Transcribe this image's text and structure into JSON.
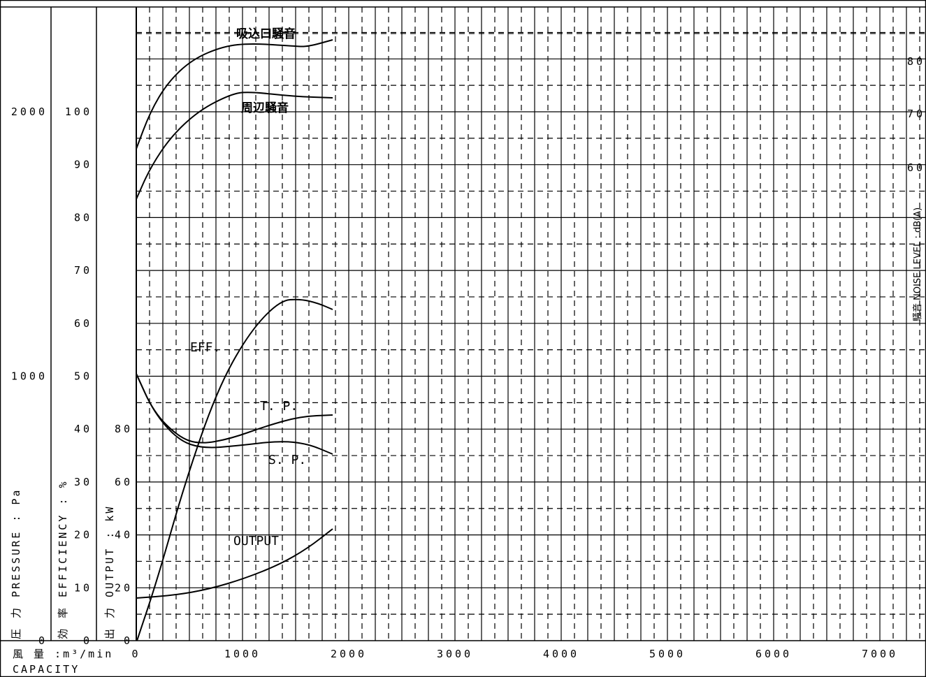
{
  "chart_data": {
    "type": "line",
    "title": "",
    "xlabel_jp": "風 量 :m³/min",
    "xlabel_en": "CAPACITY",
    "xlim": [
      0,
      7000
    ],
    "x_ticks": [
      "0",
      "1000",
      "2000",
      "3000",
      "4000",
      "5000",
      "6000",
      "7000"
    ],
    "axes": {
      "pressure": {
        "label": "圧 力 PRESSURE : Pa",
        "ticks": [
          "0",
          "1000",
          "2000"
        ],
        "ylim": [
          0,
          2500
        ]
      },
      "efficiency": {
        "label": "効 率 EFFICIENCY : %",
        "ticks": [
          "0",
          "10",
          "20",
          "30",
          "40",
          "50",
          "60",
          "70",
          "80",
          "90",
          "100"
        ],
        "ylim": [
          0,
          125
        ]
      },
      "output": {
        "label": "出 力 OUTPUT : kW",
        "ticks": [
          "0",
          "20",
          "40",
          "60",
          "80"
        ],
        "ylim": [
          0,
          250
        ]
      },
      "noise": {
        "label": "騒音 NOISE LEVEL : dB(A)",
        "ticks": [
          "60",
          "70",
          "80"
        ],
        "ylim": [
          0,
          90
        ]
      }
    },
    "grid": true,
    "series": [
      {
        "name": "吸込口騒音",
        "axis": "noise",
        "x": [
          0,
          250,
          500,
          750,
          1000,
          1250,
          1500,
          1750,
          1850
        ],
        "y": [
          84.3,
          79.3,
          81.6,
          82.3,
          82.3,
          82.2,
          82.2,
          82.4,
          82.6
        ]
      },
      {
        "name": "周辺騒音",
        "axis": "noise",
        "x": [
          0,
          250,
          500,
          750,
          1000,
          1250,
          1500,
          1750,
          1850
        ],
        "y": [
          67.3,
          71.9,
          74.1,
          74.9,
          75.0,
          74.9,
          74.7,
          74.7,
          74.8
        ]
      },
      {
        "name": "EFF.",
        "axis": "efficiency",
        "x": [
          0,
          250,
          500,
          750,
          1000,
          1250,
          1500,
          1750,
          1850
        ],
        "y": [
          0,
          13,
          35,
          41,
          54,
          60,
          65,
          64,
          63
        ]
      },
      {
        "name": "T. P.",
        "axis": "pressure",
        "x": [
          0,
          250,
          500,
          750,
          1000,
          1250,
          1500,
          1750,
          1850
        ],
        "y": [
          1000,
          780,
          690,
          700,
          760,
          820,
          860,
          865,
          860
        ]
      },
      {
        "name": "S. P.",
        "axis": "pressure",
        "x": [
          0,
          250,
          500,
          750,
          1000,
          1250,
          1500,
          1750,
          1850
        ],
        "y": [
          1000,
          780,
          670,
          660,
          680,
          700,
          700,
          660,
          630
        ]
      },
      {
        "name": "OUTPUT",
        "axis": "output",
        "x": [
          0,
          250,
          500,
          750,
          1000,
          1250,
          1500,
          1750,
          1850
        ],
        "y": [
          16,
          17,
          19,
          22,
          26,
          31,
          37,
          42,
          44
        ]
      }
    ]
  }
}
